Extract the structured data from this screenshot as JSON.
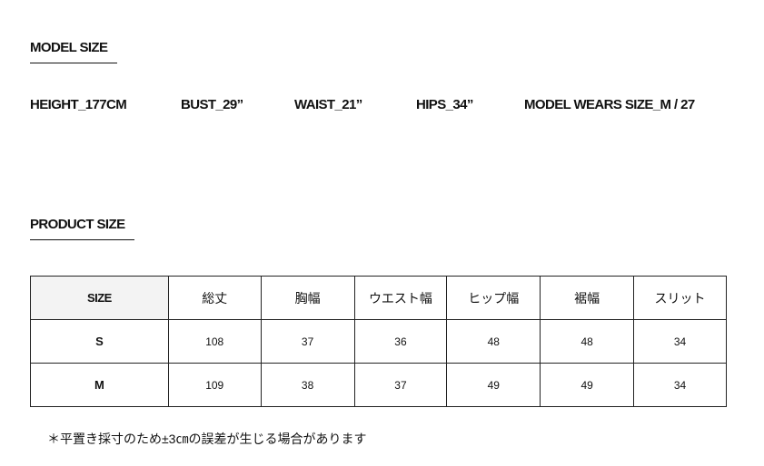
{
  "model_size": {
    "title": "MODEL SIZE",
    "stats": [
      "HEIGHT_177CM",
      "BUST_29”",
      "WAIST_21”",
      "HIPS_34”",
      "MODEL WEARS SIZE_M / 27"
    ]
  },
  "product_size": {
    "title": "PRODUCT SIZE",
    "headers": [
      "SIZE",
      "総丈",
      "胸幅",
      "ウエスト幅",
      "ヒップ幅",
      "裾幅",
      "スリット"
    ],
    "rows": [
      [
        "S",
        "108",
        "37",
        "36",
        "48",
        "48",
        "34"
      ],
      [
        "M",
        "109",
        "38",
        "37",
        "49",
        "49",
        "34"
      ]
    ],
    "header_bg": "#f3f3f3"
  },
  "note": "＊平置き採寸のため±3㎝の誤差が生じる場合があります"
}
